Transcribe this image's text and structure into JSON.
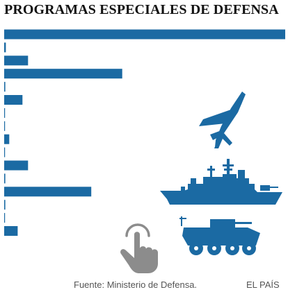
{
  "chart_data": {
    "type": "bar",
    "orientation": "horizontal",
    "title": "PROGRAMAS ESPECIALES DE DEFENSA",
    "bar_color": "#1b6aa3",
    "values": [
      1.0,
      0.006,
      0.085,
      0.42,
      0.004,
      0.065,
      0.003,
      0.003,
      0.018,
      0.003,
      0.085,
      0.004,
      0.31,
      0.004,
      0.003,
      0.048
    ],
    "xlim": [
      0,
      1
    ],
    "xlabel": "",
    "ylabel": "",
    "grid": false
  },
  "source": "Fuente: Ministerio de Defensa.",
  "credit": "EL PAÍS",
  "illustrations": [
    "fighter-jet-icon",
    "warship-icon",
    "armored-vehicle-icon",
    "touch-hand-icon"
  ]
}
